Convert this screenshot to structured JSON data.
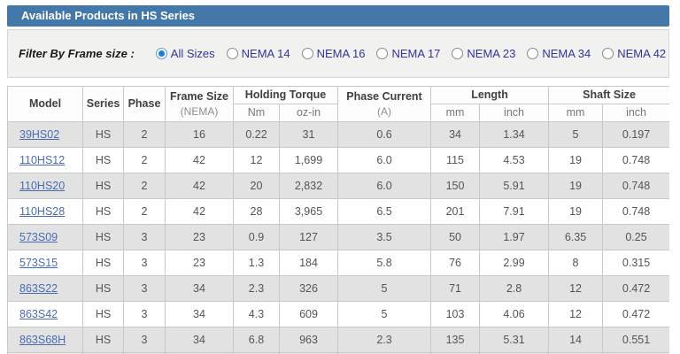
{
  "title_bar": "Available Products in HS Series",
  "filter": {
    "label": "Filter By Frame size :",
    "options": [
      {
        "label": "All Sizes",
        "selected": true
      },
      {
        "label": "NEMA 14",
        "selected": false
      },
      {
        "label": "NEMA 16",
        "selected": false
      },
      {
        "label": "NEMA 17",
        "selected": false
      },
      {
        "label": "NEMA 23",
        "selected": false
      },
      {
        "label": "NEMA 34",
        "selected": false
      },
      {
        "label": "NEMA 42",
        "selected": false
      }
    ]
  },
  "table": {
    "headers": {
      "model": "Model",
      "series": "Series",
      "phase": "Phase",
      "frame_size_line1": "Frame Size",
      "frame_size_line2": "(NEMA)",
      "holding_torque": "Holding Torque",
      "nm": "Nm",
      "oz_in": "oz-in",
      "phase_current_line1": "Phase Current",
      "phase_current_line2": "(A)",
      "length": "Length",
      "length_mm": "mm",
      "length_inch": "inch",
      "shaft_size": "Shaft Size",
      "shaft_mm": "mm",
      "shaft_inch": "inch"
    },
    "rows": [
      {
        "model": "39HS02",
        "series": "HS",
        "phase": "2",
        "frame_size": "16",
        "nm": "0.22",
        "oz_in": "31",
        "phase_current": "0.6",
        "length_mm": "34",
        "length_inch": "1.34",
        "shaft_mm": "5",
        "shaft_inch": "0.197"
      },
      {
        "model": "110HS12",
        "series": "HS",
        "phase": "2",
        "frame_size": "42",
        "nm": "12",
        "oz_in": "1,699",
        "phase_current": "6.0",
        "length_mm": "115",
        "length_inch": "4.53",
        "shaft_mm": "19",
        "shaft_inch": "0.748"
      },
      {
        "model": "110HS20",
        "series": "HS",
        "phase": "2",
        "frame_size": "42",
        "nm": "20",
        "oz_in": "2,832",
        "phase_current": "6.0",
        "length_mm": "150",
        "length_inch": "5.91",
        "shaft_mm": "19",
        "shaft_inch": "0.748"
      },
      {
        "model": "110HS28",
        "series": "HS",
        "phase": "2",
        "frame_size": "42",
        "nm": "28",
        "oz_in": "3,965",
        "phase_current": "6.5",
        "length_mm": "201",
        "length_inch": "7.91",
        "shaft_mm": "19",
        "shaft_inch": "0.748"
      },
      {
        "model": "573S09",
        "series": "HS",
        "phase": "3",
        "frame_size": "23",
        "nm": "0.9",
        "oz_in": "127",
        "phase_current": "3.5",
        "length_mm": "50",
        "length_inch": "1.97",
        "shaft_mm": "6.35",
        "shaft_inch": "0.25"
      },
      {
        "model": "573S15",
        "series": "HS",
        "phase": "3",
        "frame_size": "23",
        "nm": "1.3",
        "oz_in": "184",
        "phase_current": "5.8",
        "length_mm": "76",
        "length_inch": "2.99",
        "shaft_mm": "8",
        "shaft_inch": "0.315"
      },
      {
        "model": "863S22",
        "series": "HS",
        "phase": "3",
        "frame_size": "34",
        "nm": "2.3",
        "oz_in": "326",
        "phase_current": "5",
        "length_mm": "71",
        "length_inch": "2.8",
        "shaft_mm": "12",
        "shaft_inch": "0.472"
      },
      {
        "model": "863S42",
        "series": "HS",
        "phase": "3",
        "frame_size": "34",
        "nm": "4.3",
        "oz_in": "609",
        "phase_current": "5",
        "length_mm": "103",
        "length_inch": "4.06",
        "shaft_mm": "12",
        "shaft_inch": "0.472"
      },
      {
        "model": "863S68H",
        "series": "HS",
        "phase": "3",
        "frame_size": "34",
        "nm": "6.8",
        "oz_in": "963",
        "phase_current": "2.3",
        "length_mm": "135",
        "length_inch": "5.31",
        "shaft_mm": "14",
        "shaft_inch": "0.551"
      }
    ]
  },
  "colors": {
    "title_bar_bg": "#4478a8",
    "link": "#4a6cb3",
    "row_alt_bg": "#e2e2e2",
    "radio_label": "#333399",
    "radio_selected": "#1b7fd4",
    "border": "#c9c9c9"
  }
}
